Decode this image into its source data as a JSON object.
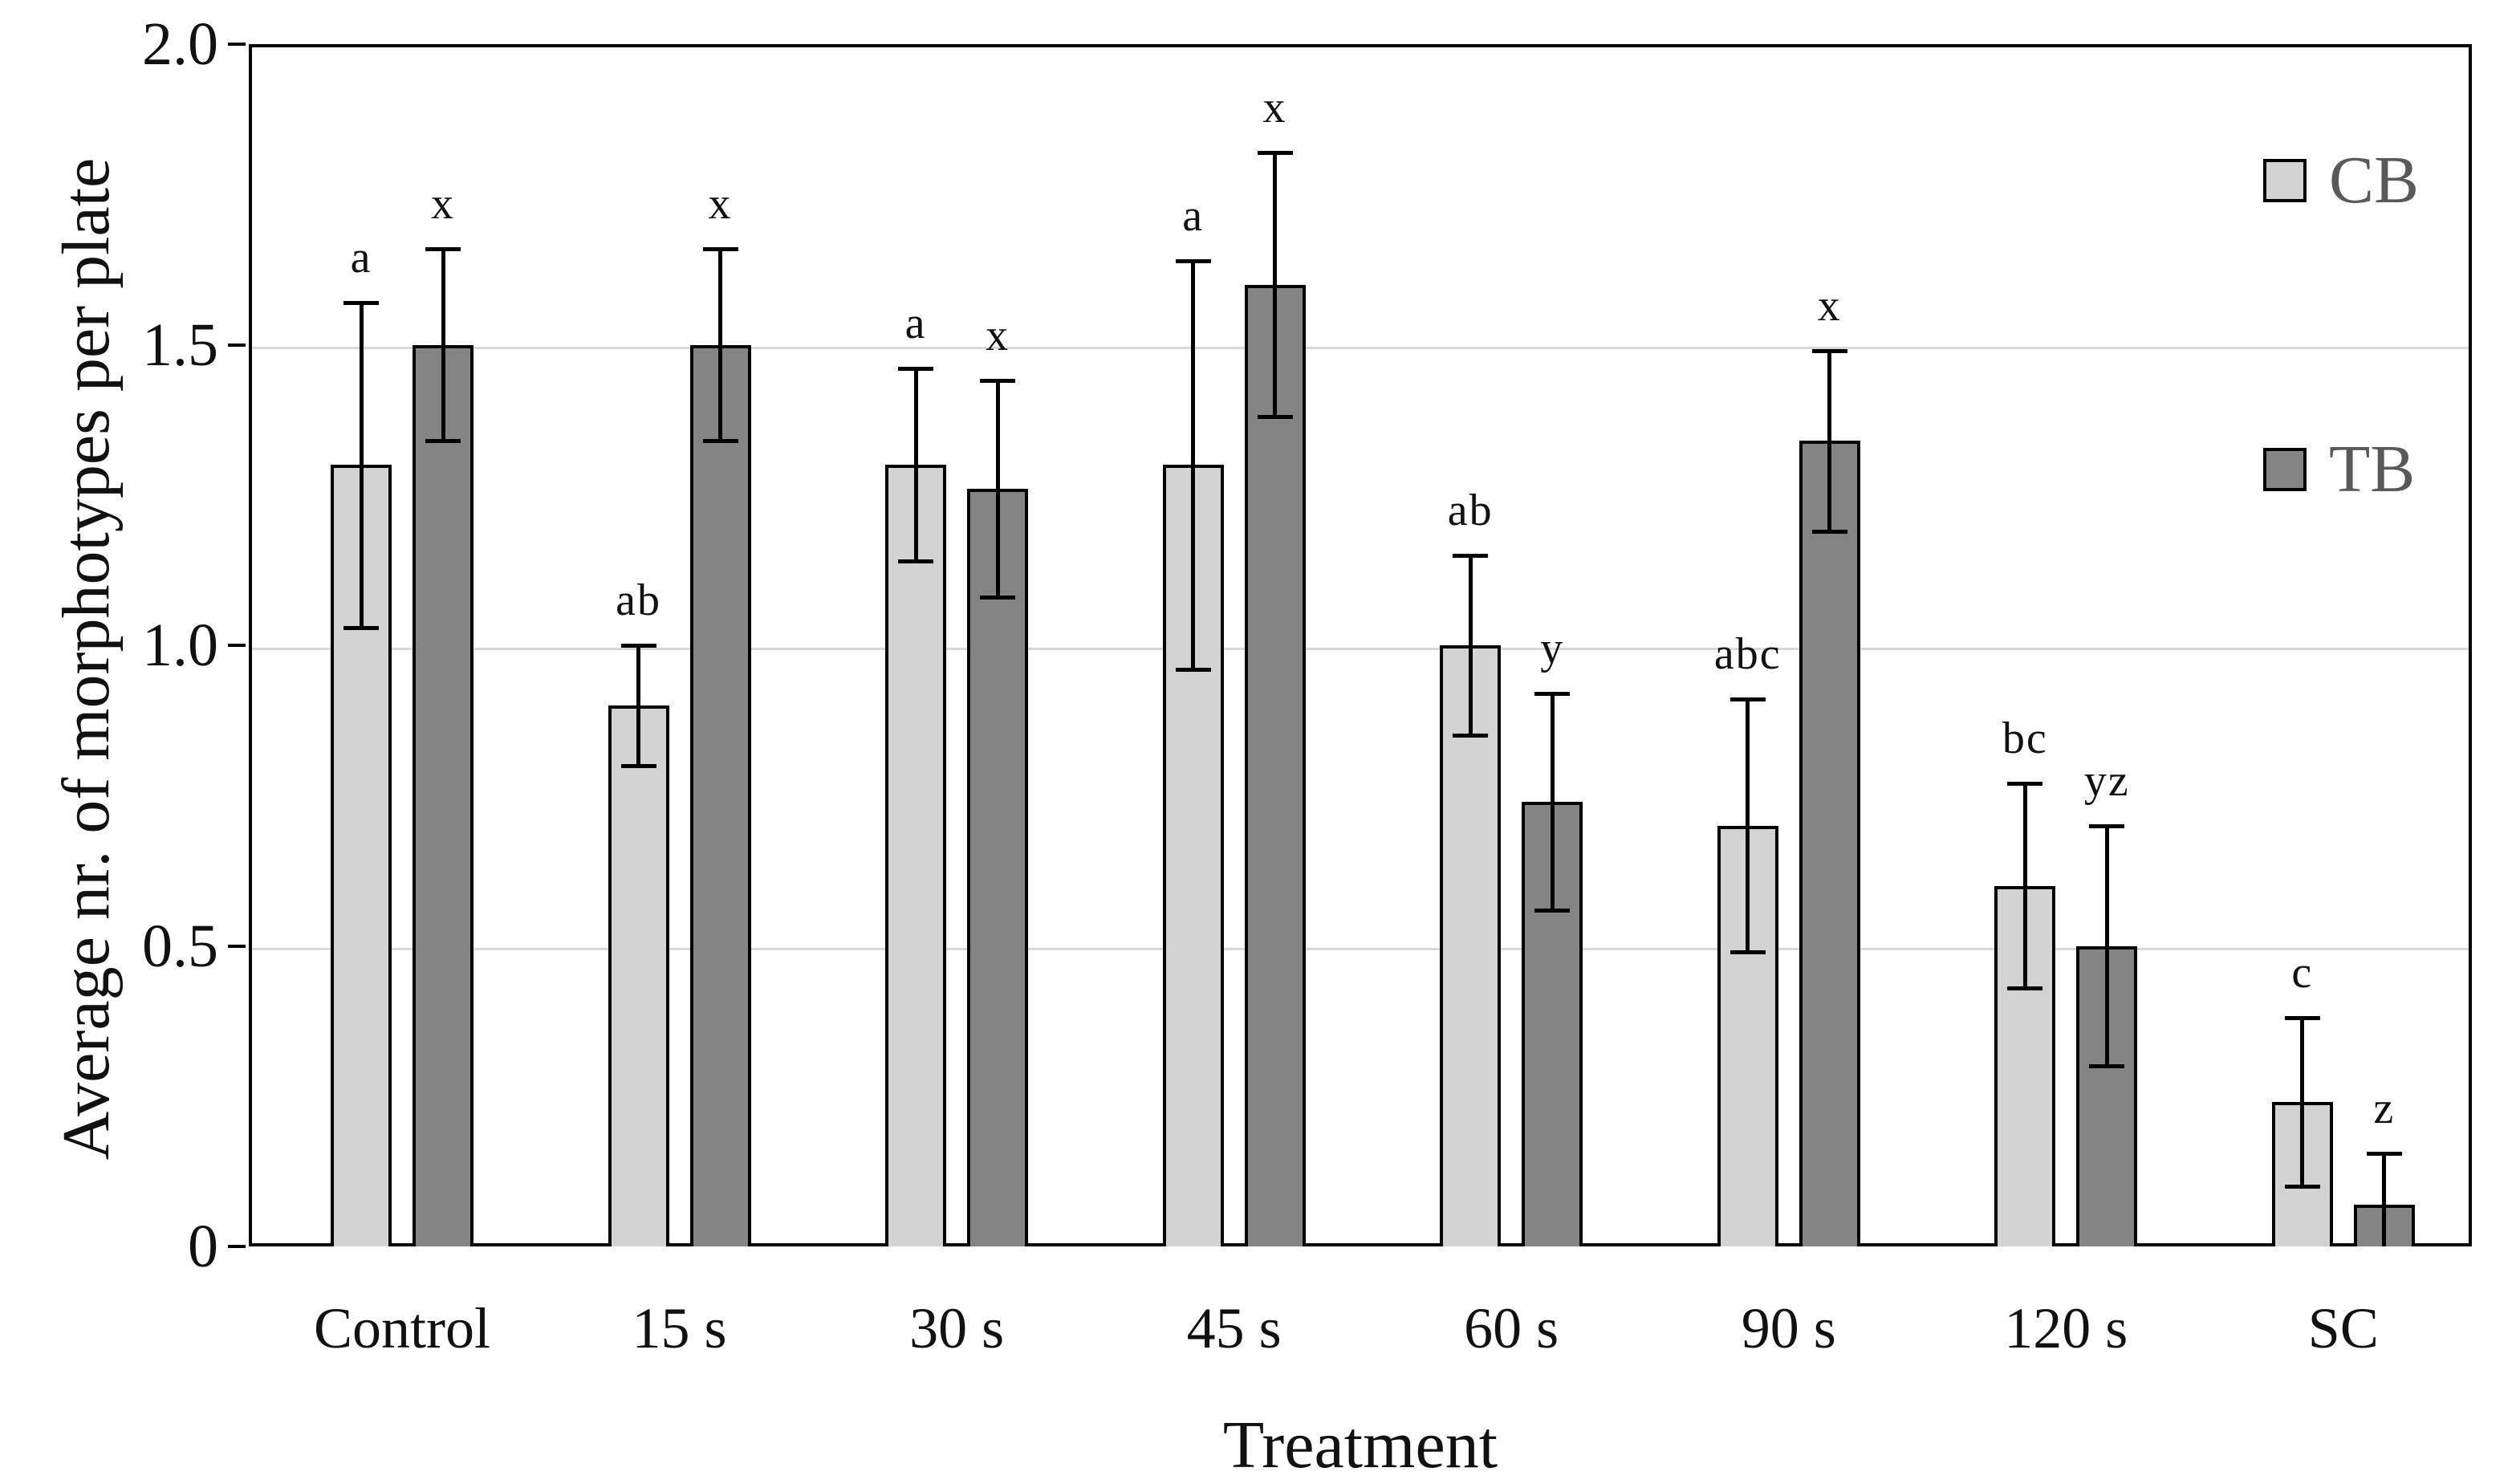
{
  "figure": {
    "kind": "grouped-bar-chart-with-error-bars"
  },
  "y_axis": {
    "title": "Average nr. of morphotypes per plate",
    "tick_labels": [
      "2.0",
      "1.5",
      "1.0",
      "0.5",
      "0"
    ],
    "tick_values": [
      2.0,
      1.5,
      1.0,
      0.5,
      0
    ]
  },
  "x_axis": {
    "title": "Treatment",
    "categories": [
      "Control",
      "15 s",
      "30 s",
      "45 s",
      "60 s",
      "90 s",
      "120 s",
      "SC"
    ]
  },
  "legend": {
    "items": [
      {
        "label": "CB",
        "color": "#d2d2d2"
      },
      {
        "label": "TB",
        "color": "#848484"
      }
    ]
  },
  "colors": {
    "cb_fill": "#d2d2d2",
    "tb_fill": "#848484",
    "bar_border": "#000000",
    "gridline": "#d9d9d9",
    "legend_text": "#595959",
    "text": "#111111"
  },
  "chart_data": {
    "type": "bar",
    "title": "",
    "xlabel": "Treatment",
    "ylabel": "Average nr. of morphotypes per plate",
    "ylim": [
      0,
      2.0
    ],
    "grid": true,
    "gridline_values": [
      0.5,
      1.0,
      1.5
    ],
    "legend_position": "inside-right",
    "categories": [
      "Control",
      "15 s",
      "30 s",
      "45 s",
      "60 s",
      "90 s",
      "120 s",
      "SC"
    ],
    "series": [
      {
        "name": "CB",
        "color": "#d2d2d2",
        "values": [
          1.3,
          0.9,
          1.3,
          1.3,
          1.0,
          0.7,
          0.6,
          0.24
        ],
        "error_low": [
          1.03,
          0.8,
          1.14,
          0.96,
          0.85,
          0.49,
          0.43,
          0.1
        ],
        "error_high": [
          1.57,
          1.0,
          1.46,
          1.64,
          1.15,
          0.91,
          0.77,
          0.38
        ],
        "sig_letters": [
          "a",
          "ab",
          "a",
          "a",
          "ab",
          "abc",
          "bc",
          "c"
        ]
      },
      {
        "name": "TB",
        "color": "#848484",
        "values": [
          1.5,
          1.5,
          1.26,
          1.6,
          0.74,
          1.34,
          0.5,
          0.07
        ],
        "error_low": [
          1.34,
          1.34,
          1.08,
          1.38,
          0.56,
          1.19,
          0.3,
          0.0
        ],
        "error_high": [
          1.66,
          1.66,
          1.44,
          1.82,
          0.92,
          1.49,
          0.7,
          0.155
        ],
        "sig_letters": [
          "x",
          "x",
          "x",
          "x",
          "y",
          "x",
          "yz",
          "z"
        ]
      }
    ]
  }
}
